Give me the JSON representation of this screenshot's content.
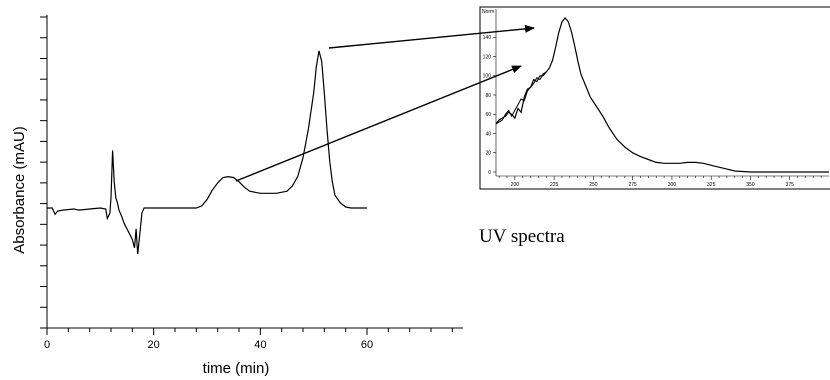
{
  "chart_data": [
    {
      "type": "line",
      "xlabel": "time (min)",
      "ylabel": "Absorbance (mAU)",
      "xlim": [
        0,
        78
      ],
      "x_ticks": [
        0,
        20,
        40,
        60
      ],
      "x_tick_labels": [
        "0",
        "20",
        "40",
        "60"
      ],
      "y_tick_count": 16,
      "grid": false,
      "series": [
        {
          "x": [
            0,
            1,
            1.5,
            2,
            3,
            5,
            6,
            8,
            10,
            11,
            11.3,
            11.8,
            12.0,
            12.3,
            12.6,
            12.9,
            13.2,
            13.5,
            14.0,
            14.5,
            15.0,
            15.5,
            16.0,
            16.4,
            16.7,
            17.0,
            17.4,
            17.8,
            18.2,
            20,
            25,
            28,
            29,
            30,
            31,
            32,
            33,
            34,
            35,
            36,
            37,
            38,
            40,
            43,
            45,
            46,
            47,
            48,
            49,
            50,
            50.5,
            51,
            51.5,
            52,
            52.5,
            53,
            53.5,
            54,
            55,
            56,
            57,
            58,
            59,
            60
          ],
          "y": [
            0,
            0,
            -0.6,
            -0.3,
            -0.2,
            -0.1,
            -0.2,
            -0.1,
            0,
            -0.1,
            -1.0,
            -0.5,
            1.0,
            5.5,
            2.5,
            1.0,
            0.5,
            -0.2,
            -0.8,
            -1.5,
            -2.0,
            -2.5,
            -3.0,
            -3.8,
            -2.0,
            -4.4,
            -2.5,
            -0.5,
            0,
            0,
            0,
            0,
            0.2,
            0.8,
            1.7,
            2.4,
            2.9,
            3.0,
            2.9,
            2.5,
            2.0,
            1.6,
            1.4,
            1.4,
            1.6,
            2.1,
            3.0,
            4.8,
            7.5,
            11.0,
            13.5,
            15.0,
            14.0,
            11.0,
            7.5,
            4.5,
            2.5,
            1.2,
            0.5,
            0.1,
            0,
            0,
            0,
            0
          ]
        }
      ]
    },
    {
      "type": "line",
      "ylabel": "Norm",
      "xlim": [
        188,
        400
      ],
      "ylim": [
        0,
        160
      ],
      "x_ticks": [
        200,
        225,
        250,
        275,
        300,
        325,
        350,
        375
      ],
      "x_tick_labels": [
        "200",
        "225",
        "250",
        "275",
        "300",
        "325",
        "350",
        "375"
      ],
      "y_ticks": [
        0,
        20,
        40,
        60,
        80,
        100,
        120,
        140
      ],
      "y_tick_labels": [
        "0",
        "20",
        "40",
        "60",
        "80",
        "100",
        "120",
        "140"
      ],
      "grid": false,
      "series": [
        {
          "x": [
            188,
            190,
            192,
            194,
            196,
            198,
            200,
            202,
            204,
            206,
            208,
            210,
            212,
            214,
            216,
            218,
            220,
            222,
            224,
            226,
            228,
            230,
            232,
            234,
            236,
            238,
            240,
            242,
            245,
            248,
            252,
            256,
            260,
            265,
            270,
            275,
            280,
            285,
            290,
            295,
            300,
            305,
            310,
            315,
            320,
            325,
            330,
            335,
            340,
            350,
            360,
            370,
            380,
            390,
            400
          ],
          "y": [
            50,
            54,
            56,
            58,
            62,
            60,
            56,
            66,
            62,
            78,
            86,
            88,
            96,
            94,
            100,
            100,
            104,
            108,
            116,
            130,
            145,
            156,
            160,
            156,
            146,
            132,
            116,
            102,
            90,
            78,
            68,
            58,
            46,
            34,
            26,
            20,
            16,
            13,
            10,
            9,
            9,
            9,
            10,
            10,
            9,
            7,
            5,
            3,
            1,
            0,
            0,
            0,
            0,
            0,
            0
          ]
        },
        {
          "x": [
            188,
            190,
            192,
            194,
            196,
            198,
            200,
            202,
            204,
            206,
            208,
            210,
            212,
            214,
            216,
            218,
            220
          ],
          "y": [
            50,
            52,
            54,
            60,
            64,
            58,
            64,
            70,
            76,
            74,
            84,
            88,
            92,
            98,
            96,
            102,
            104
          ]
        }
      ]
    }
  ],
  "caption": "UV spectra"
}
